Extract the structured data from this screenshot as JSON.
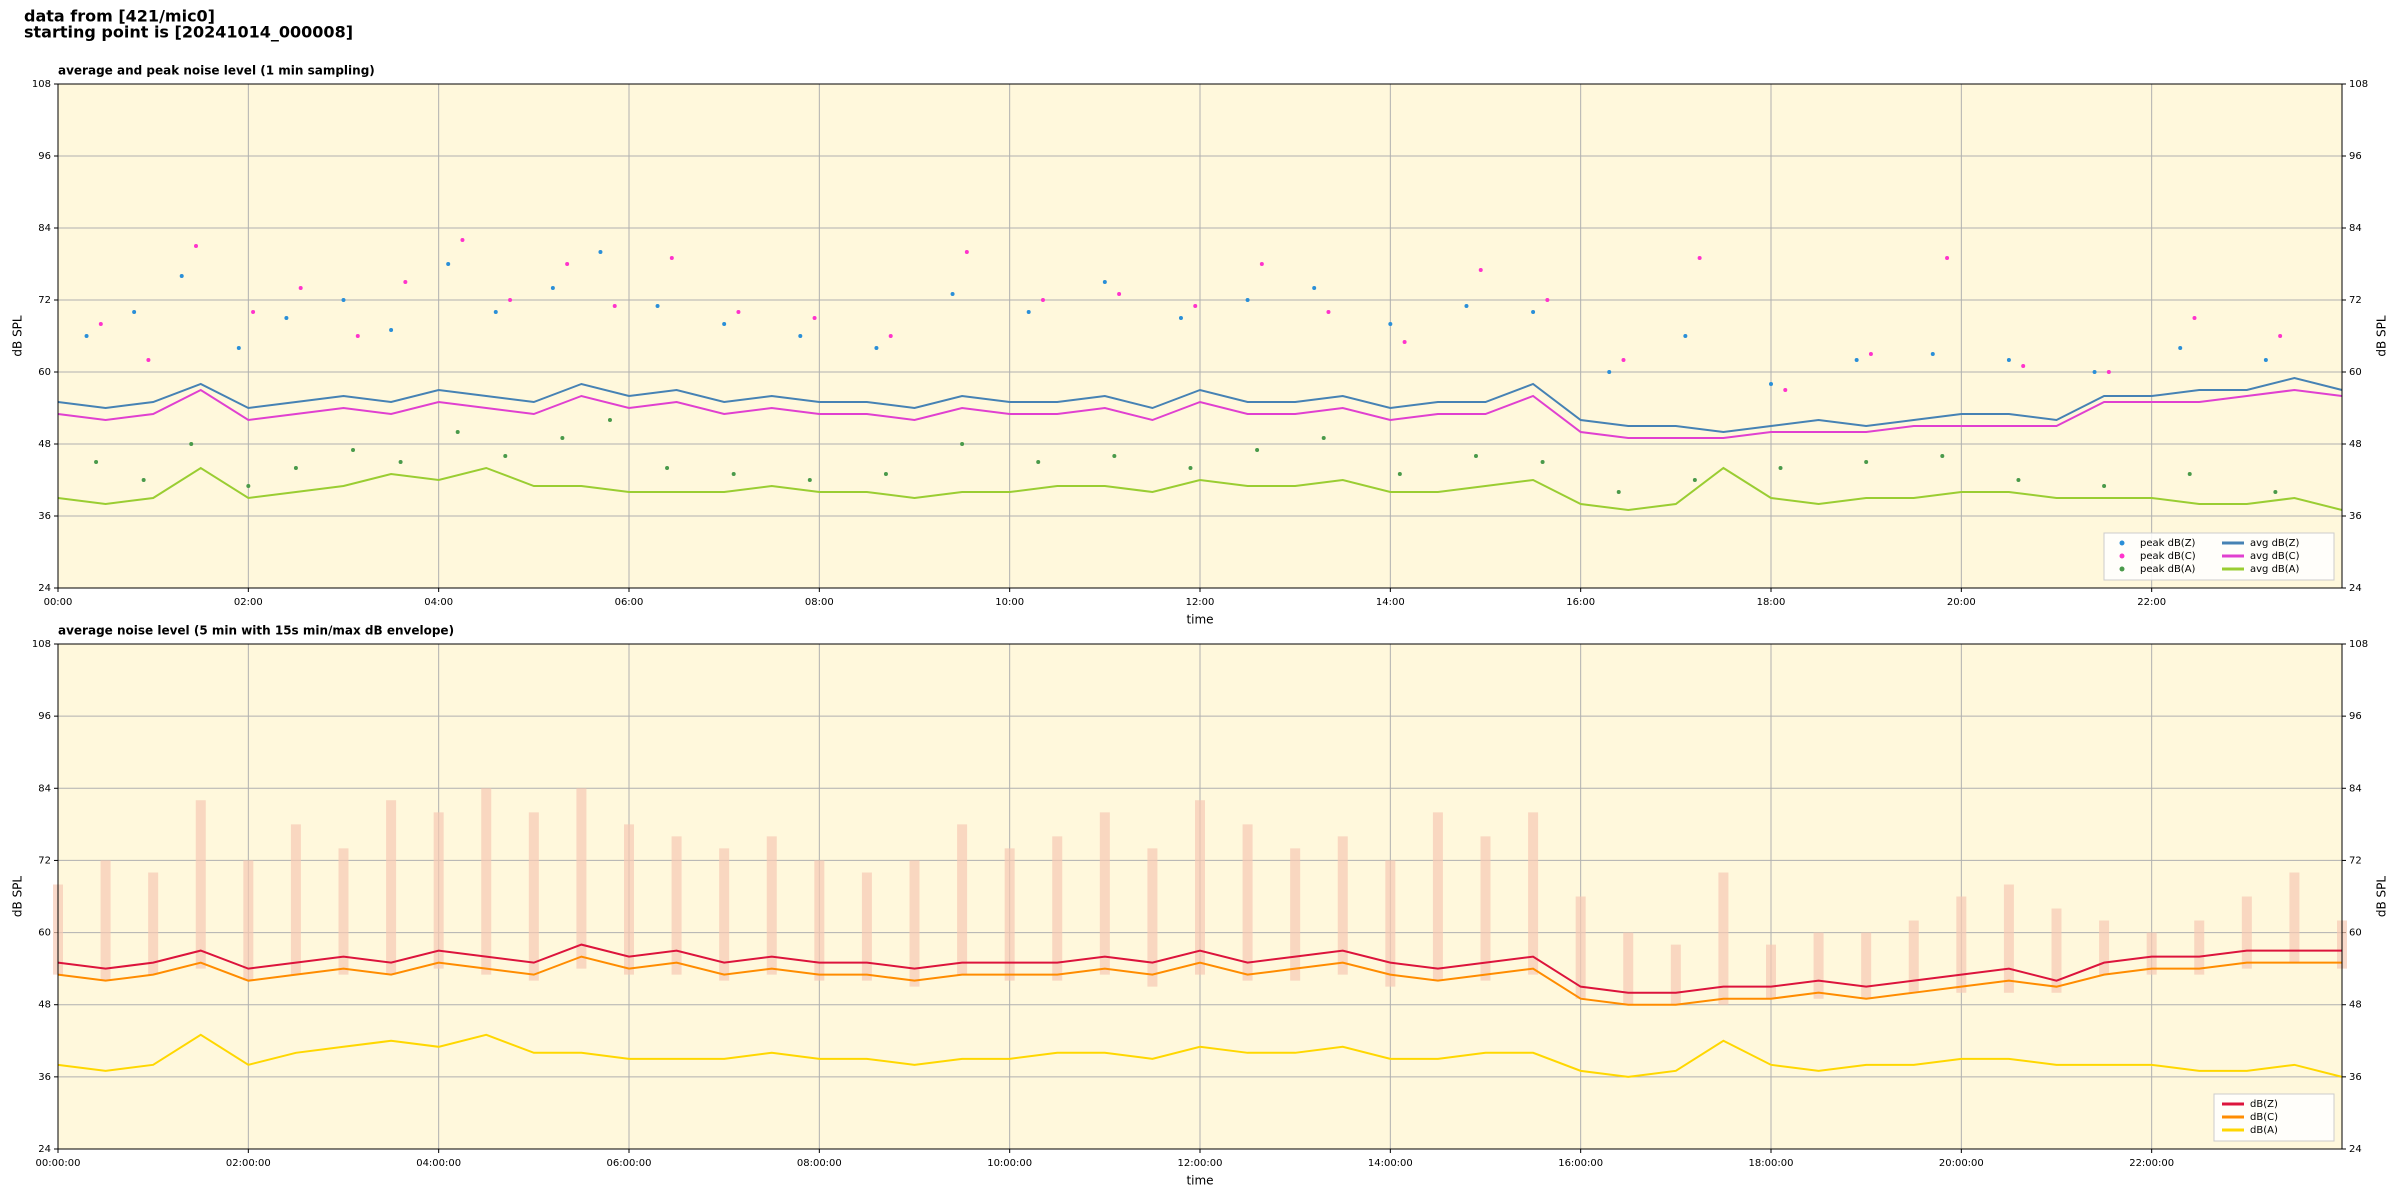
{
  "header": {
    "line1": "data from [421/mic0]",
    "line2": "starting point is [20241014_000008]"
  },
  "chart_data": [
    {
      "type": "line",
      "title": "average and peak noise level (1 min sampling)",
      "x_label": "time",
      "y_label": "dB SPL",
      "xlim": [
        0,
        24
      ],
      "ylim": [
        24,
        108
      ],
      "yticks": [
        24,
        36,
        48,
        60,
        72,
        84,
        96,
        108
      ],
      "xticks": [
        {
          "value": 0,
          "label": "00:00"
        },
        {
          "value": 2,
          "label": "02:00"
        },
        {
          "value": 4,
          "label": "04:00"
        },
        {
          "value": 6,
          "label": "06:00"
        },
        {
          "value": 8,
          "label": "08:00"
        },
        {
          "value": 10,
          "label": "10:00"
        },
        {
          "value": 12,
          "label": "12:00"
        },
        {
          "value": 14,
          "label": "14:00"
        },
        {
          "value": 16,
          "label": "16:00"
        },
        {
          "value": 18,
          "label": "18:00"
        },
        {
          "value": 20,
          "label": "20:00"
        },
        {
          "value": 22,
          "label": "22:00"
        }
      ],
      "grid": true,
      "legend": "lower right",
      "background": "#fff8dc",
      "x": [
        0,
        0.5,
        1,
        1.5,
        2,
        2.5,
        3,
        3.5,
        4,
        4.5,
        5,
        5.5,
        6,
        6.5,
        7,
        7.5,
        8,
        8.5,
        9,
        9.5,
        10,
        10.5,
        11,
        11.5,
        12,
        12.5,
        13,
        13.5,
        14,
        14.5,
        15,
        15.5,
        16,
        16.5,
        17,
        17.5,
        18,
        18.5,
        19,
        19.5,
        20,
        20.5,
        21,
        21.5,
        22,
        22.5,
        23,
        23.5,
        24
      ],
      "series": [
        {
          "name": "peak dB(Z)",
          "style": "scatter",
          "color": "#2a8fd8",
          "x": [
            0.3,
            0.8,
            1.3,
            1.9,
            2.4,
            3.0,
            3.5,
            4.1,
            4.6,
            5.2,
            5.7,
            6.3,
            7.0,
            7.8,
            8.6,
            9.4,
            10.2,
            11.0,
            11.8,
            12.5,
            13.2,
            14.0,
            14.8,
            15.5,
            16.3,
            17.1,
            18.0,
            18.9,
            19.7,
            20.5,
            21.4,
            22.3,
            23.2
          ],
          "values": [
            66,
            70,
            76,
            64,
            69,
            72,
            67,
            78,
            70,
            74,
            80,
            71,
            68,
            66,
            64,
            73,
            70,
            75,
            69,
            72,
            74,
            68,
            71,
            70,
            60,
            66,
            58,
            62,
            63,
            62,
            60,
            64,
            62
          ]
        },
        {
          "name": "peak dB(C)",
          "style": "scatter",
          "color": "#ff33cc",
          "x": [
            0.45,
            0.95,
            1.45,
            2.05,
            2.55,
            3.15,
            3.65,
            4.25,
            4.75,
            5.35,
            5.85,
            6.45,
            7.15,
            7.95,
            8.75,
            9.55,
            10.35,
            11.15,
            11.95,
            12.65,
            13.35,
            14.15,
            14.95,
            15.65,
            16.45,
            17.25,
            18.15,
            19.05,
            19.85,
            20.65,
            21.55,
            22.45,
            23.35
          ],
          "values": [
            68,
            62,
            81,
            70,
            74,
            66,
            75,
            82,
            72,
            78,
            71,
            79,
            70,
            69,
            66,
            80,
            72,
            73,
            71,
            78,
            70,
            65,
            77,
            72,
            62,
            79,
            57,
            63,
            79,
            61,
            60,
            69,
            66
          ]
        },
        {
          "name": "peak dB(A)",
          "style": "scatter",
          "color": "#4a9a4a",
          "x": [
            0.4,
            0.9,
            1.4,
            2.0,
            2.5,
            3.1,
            3.6,
            4.2,
            4.7,
            5.3,
            5.8,
            6.4,
            7.1,
            7.9,
            8.7,
            9.5,
            10.3,
            11.1,
            11.9,
            12.6,
            13.3,
            14.1,
            14.9,
            15.6,
            16.4,
            17.2,
            18.1,
            19.0,
            19.8,
            20.6,
            21.5,
            22.4,
            23.3
          ],
          "values": [
            45,
            42,
            48,
            41,
            44,
            47,
            45,
            50,
            46,
            49,
            52,
            44,
            43,
            42,
            43,
            48,
            45,
            46,
            44,
            47,
            49,
            43,
            46,
            45,
            40,
            42,
            44,
            45,
            46,
            42,
            41,
            43,
            40
          ]
        },
        {
          "name": "avg dB(Z)",
          "style": "line",
          "color": "#4682b4",
          "values": [
            55,
            54,
            55,
            58,
            54,
            55,
            56,
            55,
            57,
            56,
            55,
            58,
            56,
            57,
            55,
            56,
            55,
            55,
            54,
            56,
            55,
            55,
            56,
            54,
            57,
            55,
            55,
            56,
            54,
            55,
            55,
            58,
            52,
            51,
            51,
            50,
            51,
            52,
            51,
            52,
            53,
            53,
            52,
            56,
            56,
            57,
            57,
            59,
            57
          ]
        },
        {
          "name": "avg dB(C)",
          "style": "line",
          "color": "#e040d0",
          "values": [
            53,
            52,
            53,
            57,
            52,
            53,
            54,
            53,
            55,
            54,
            53,
            56,
            54,
            55,
            53,
            54,
            53,
            53,
            52,
            54,
            53,
            53,
            54,
            52,
            55,
            53,
            53,
            54,
            52,
            53,
            53,
            56,
            50,
            49,
            49,
            49,
            50,
            50,
            50,
            51,
            51,
            51,
            51,
            55,
            55,
            55,
            56,
            57,
            56
          ]
        },
        {
          "name": "avg dB(A)",
          "style": "line",
          "color": "#9acd32",
          "values": [
            39,
            38,
            39,
            44,
            39,
            40,
            41,
            43,
            42,
            44,
            41,
            41,
            40,
            40,
            40,
            41,
            40,
            40,
            39,
            40,
            40,
            41,
            41,
            40,
            42,
            41,
            41,
            42,
            40,
            40,
            41,
            42,
            38,
            37,
            38,
            44,
            39,
            38,
            39,
            39,
            40,
            40,
            39,
            39,
            39,
            38,
            38,
            39,
            37
          ]
        }
      ]
    },
    {
      "type": "line",
      "title": "average noise level (5 min with 15s min/max dB envelope)",
      "x_label": "time",
      "y_label": "dB SPL",
      "xlim": [
        0,
        24
      ],
      "ylim": [
        24,
        108
      ],
      "yticks": [
        24,
        36,
        48,
        60,
        72,
        84,
        96,
        108
      ],
      "xticks": [
        {
          "value": 0,
          "label": "00:00:00"
        },
        {
          "value": 2,
          "label": "02:00:00"
        },
        {
          "value": 4,
          "label": "04:00:00"
        },
        {
          "value": 6,
          "label": "06:00:00"
        },
        {
          "value": 8,
          "label": "08:00:00"
        },
        {
          "value": 10,
          "label": "10:00:00"
        },
        {
          "value": 12,
          "label": "12:00:00"
        },
        {
          "value": 14,
          "label": "14:00:00"
        },
        {
          "value": 16,
          "label": "16:00:00"
        },
        {
          "value": 18,
          "label": "18:00:00"
        },
        {
          "value": 20,
          "label": "20:00:00"
        },
        {
          "value": 22,
          "label": "22:00:00"
        }
      ],
      "grid": true,
      "legend": "lower right",
      "background": "#fff8dc",
      "x": [
        0,
        0.5,
        1,
        1.5,
        2,
        2.5,
        3,
        3.5,
        4,
        4.5,
        5,
        5.5,
        6,
        6.5,
        7,
        7.5,
        8,
        8.5,
        9,
        9.5,
        10,
        10.5,
        11,
        11.5,
        12,
        12.5,
        13,
        13.5,
        14,
        14.5,
        15,
        15.5,
        16,
        16.5,
        17,
        17.5,
        18,
        18.5,
        19,
        19.5,
        20,
        20.5,
        21,
        21.5,
        22,
        22.5,
        23,
        23.5,
        24
      ],
      "envelope": {
        "color": "#f6c9b4",
        "low": [
          53,
          52,
          53,
          54,
          52,
          53,
          53,
          53,
          54,
          53,
          52,
          54,
          53,
          53,
          52,
          53,
          52,
          52,
          51,
          53,
          52,
          52,
          53,
          51,
          53,
          52,
          52,
          53,
          51,
          52,
          52,
          53,
          49,
          48,
          48,
          48,
          49,
          49,
          49,
          50,
          50,
          50,
          50,
          53,
          53,
          53,
          54,
          55,
          54
        ],
        "high": [
          68,
          72,
          70,
          82,
          72,
          78,
          74,
          82,
          80,
          84,
          80,
          84,
          78,
          76,
          74,
          76,
          72,
          70,
          72,
          78,
          74,
          76,
          80,
          74,
          82,
          78,
          74,
          76,
          72,
          80,
          76,
          80,
          66,
          60,
          58,
          70,
          58,
          60,
          60,
          62,
          66,
          68,
          64,
          62,
          60,
          62,
          66,
          70,
          62
        ]
      },
      "series": [
        {
          "name": "dB(Z)",
          "style": "line",
          "color": "#dc143c",
          "values": [
            55,
            54,
            55,
            57,
            54,
            55,
            56,
            55,
            57,
            56,
            55,
            58,
            56,
            57,
            55,
            56,
            55,
            55,
            54,
            55,
            55,
            55,
            56,
            55,
            57,
            55,
            56,
            57,
            55,
            54,
            55,
            56,
            51,
            50,
            50,
            51,
            51,
            52,
            51,
            52,
            53,
            54,
            52,
            55,
            56,
            56,
            57,
            57,
            57
          ]
        },
        {
          "name": "dB(C)",
          "style": "line",
          "color": "#ff8c00",
          "values": [
            53,
            52,
            53,
            55,
            52,
            53,
            54,
            53,
            55,
            54,
            53,
            56,
            54,
            55,
            53,
            54,
            53,
            53,
            52,
            53,
            53,
            53,
            54,
            53,
            55,
            53,
            54,
            55,
            53,
            52,
            53,
            54,
            49,
            48,
            48,
            49,
            49,
            50,
            49,
            50,
            51,
            52,
            51,
            53,
            54,
            54,
            55,
            55,
            55
          ]
        },
        {
          "name": "dB(A)",
          "style": "line",
          "color": "#ffd700",
          "values": [
            38,
            37,
            38,
            43,
            38,
            40,
            41,
            42,
            41,
            43,
            40,
            40,
            39,
            39,
            39,
            40,
            39,
            39,
            38,
            39,
            39,
            40,
            40,
            39,
            41,
            40,
            40,
            41,
            39,
            39,
            40,
            40,
            37,
            36,
            37,
            42,
            38,
            37,
            38,
            38,
            39,
            39,
            38,
            38,
            38,
            37,
            37,
            38,
            36
          ]
        }
      ]
    }
  ]
}
